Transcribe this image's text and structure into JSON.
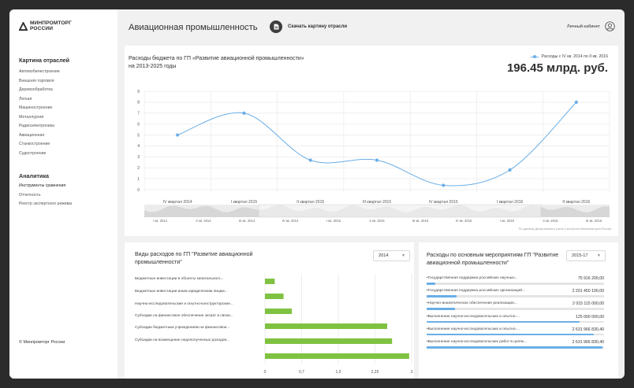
{
  "sidebar": {
    "logo_line1": "МИНПРОМТОРГ",
    "logo_line2": "РОССИИ",
    "section1_title": "Картина отраслей",
    "industries": [
      "Автомобилестроение",
      "Внешняя торговля",
      "Деревообработка",
      "Легкая",
      "Машиностроение",
      "Металлургия",
      "Радиоэлектроника",
      "Авиационная",
      "Станкостроение",
      "Судостроение"
    ],
    "section2_title": "Аналитика",
    "analytics": [
      "Инструменты сравнения",
      "Отчетность",
      "Реестр экспертного режима"
    ],
    "footer": "© Минпромторг России"
  },
  "header": {
    "title": "Авиационная промышленность",
    "download_label": "Скачать картину отрасли",
    "cabinet_label": "Личный кабинет",
    "doc_icon": "document-icon",
    "user_icon": "user-icon"
  },
  "main_chart": {
    "title": "Расходы бюджета по ГП «Развитие авиационной промышленности» на 2013-2025 годы",
    "legend_label": "Расходы с IV кв. 2014 по II кв. 2016",
    "big_value": "196.45 млрд. руб.",
    "source": "По данным Департамента учета и контроля Минпромторга России",
    "navigator_labels": [
      "I кв. 2014",
      "II кв. 2014",
      "III кв. 2014",
      "IV кв. 2014",
      "I кв. 2015",
      "II кв. 2015",
      "III кв. 2015",
      "IV кв. 2015",
      "I кв. 2016",
      "II кв. 2016",
      "III кв. 2016"
    ]
  },
  "expenses_types": {
    "title": "Виды расходов по ГП \"Развитие авиационной промышленности\"",
    "year": "2014",
    "items": [
      "Бюджетные инвестиции в объекты капитального...",
      "Бюджетные инвестиции иным юридическим лицам...",
      "Научно-исследовательские и опытно-конструкторские...",
      "Субсидии на финансовое обеспечение затрат в связи...",
      "Субсидии бюджетным учреждениям на финансовое...",
      "Субсидии на возмещение недополученных доходов..."
    ]
  },
  "activities": {
    "title": "Расходы по основным мероприятиям ГП \"Развитие авиационной промышленности\"",
    "period": "2015-17",
    "items": [
      {
        "name": "Государственная поддержка российских научных...",
        "value": "75 916 200,00",
        "fraction": 0.05
      },
      {
        "name": "Государственная поддержка российских организаций...",
        "value": "2 201 450 100,00",
        "fraction": 0.17
      },
      {
        "name": "Научно-аналитическое обеспечение реализации...",
        "value": "2 015 115 000,00",
        "fraction": 0.16
      },
      {
        "name": "Выполнение научно-исследовательских и опытно-...",
        "value": "125 000 000,00",
        "fraction": 0.86
      },
      {
        "name": "Выполнение научно-исследовательских и опытно-...",
        "value": "2 631 966 830,40",
        "fraction": 0.94
      },
      {
        "name": "Выполнение научно-исследовательских работ в целях...",
        "value": "2 631 966 830,40",
        "fraction": 0.99
      }
    ]
  },
  "chart_data": [
    {
      "type": "line",
      "title": "Расходы бюджета по ГП «Развитие авиационной промышленности» на 2013-2025 годы",
      "categories": [
        "IV квартал 2014",
        "I квартал 2015",
        "II квартал 2015",
        "III квартал 2015",
        "IV квартал 2015",
        "I квартал 2016",
        "II квартал 2016"
      ],
      "series": [
        {
          "name": "Расходы с IV кв. 2014 по II кв. 2016",
          "values": [
            5,
            7,
            2.7,
            2.7,
            0.4,
            1.8,
            8
          ]
        }
      ],
      "ylim": [
        0,
        9
      ],
      "yticks": [
        0,
        1,
        2,
        3,
        4,
        5,
        6,
        7,
        8,
        9
      ],
      "grid": true,
      "color": "#6aaee6"
    },
    {
      "type": "bar",
      "orientation": "horizontal",
      "title": "Виды расходов по ГП \"Развитие авиационной промышленности\"",
      "categories": [
        "Бюджетные инвестиции в объекты капитального...",
        "Бюджетные инвестиции иным юридическим лицам...",
        "Научно-исследовательские и опытно-конструкторские...",
        "Субсидии на финансовое обеспечение затрат в связи...",
        "Субсидии бюджетным учреждениям на финансовое...",
        "Субсидии на возмещение недополученных доходов..."
      ],
      "values": [
        0.2,
        0.38,
        0.55,
        2.5,
        2.6,
        2.95
      ],
      "xlim": [
        0,
        3
      ],
      "xticks": [
        "0",
        "0,7",
        "1,5",
        "2,25",
        "3"
      ],
      "grid": true,
      "color": "#7fc241"
    }
  ]
}
